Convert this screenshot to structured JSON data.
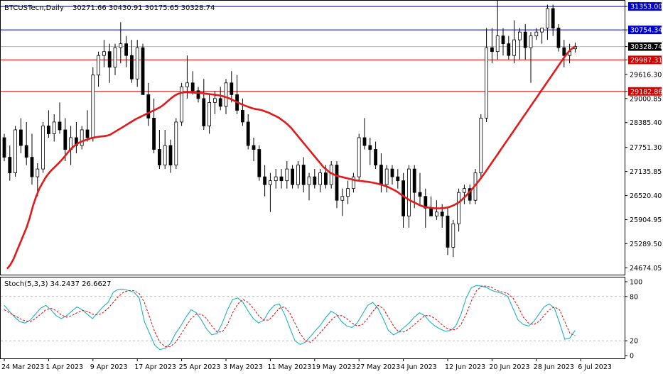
{
  "header": {
    "symbol": "BTCUSTecn,Daily",
    "ohlc": "30271.66 30430.91 30175.65 30328.74"
  },
  "colors": {
    "bull": "#ffffff",
    "bear": "#000000",
    "ma": "#e31a1c",
    "resistance": "#0000c8",
    "support": "#d40000",
    "current_tag": "#000000",
    "stoch_main": "#20b2c0",
    "stoch_signal": "#e31a1c"
  },
  "chart_data": [
    {
      "type": "candlestick",
      "title": "BTCUSTecn,Daily",
      "price_axis": {
        "min": 24500,
        "max": 31500,
        "ticks": [
          31353.0,
          30754.34,
          30328.74,
          29987.31,
          29616.3,
          29182.86,
          29000.85,
          28385.4,
          27751.3,
          27135.85,
          26520.4,
          25904.95,
          25289.5,
          24674.05
        ]
      },
      "x_labels": [
        "24 Mar 2023",
        "1 Apr 2023",
        "9 Apr 2023",
        "17 Apr 2023",
        "25 Apr 2023",
        "3 May 2023",
        "11 May 2023",
        "19 May 2023",
        "27 May 2023",
        "4 Jun 2023",
        "12 Jun 2023",
        "20 Jun 2023",
        "28 Jun 2023",
        "6 Jul 2023"
      ],
      "x_label_index": [
        0,
        8,
        16,
        24,
        32,
        40,
        48,
        56,
        64,
        72,
        80,
        88,
        96,
        104
      ],
      "horizontal_levels": [
        {
          "value": 31353.0,
          "label": "31353.00",
          "kind": "resistance"
        },
        {
          "value": 30754.34,
          "label": "30754.34",
          "kind": "resistance"
        },
        {
          "value": 29987.31,
          "label": "29987.31",
          "kind": "support"
        },
        {
          "value": 29182.86,
          "label": "29182.86",
          "kind": "support"
        }
      ],
      "current_price": 30328.74,
      "candles": [
        [
          28000,
          28100,
          27400,
          27500
        ],
        [
          27500,
          27800,
          26900,
          27100
        ],
        [
          27100,
          28300,
          27000,
          28200
        ],
        [
          28200,
          28500,
          27600,
          27800
        ],
        [
          27800,
          28400,
          27300,
          27500
        ],
        [
          27500,
          28100,
          26800,
          27000
        ],
        [
          27000,
          27350,
          26500,
          27200
        ],
        [
          27200,
          28400,
          27100,
          28300
        ],
        [
          28300,
          28700,
          28000,
          28100
        ],
        [
          28100,
          28600,
          27900,
          28400
        ],
        [
          28400,
          28900,
          28100,
          28200
        ],
        [
          28200,
          28500,
          27400,
          27700
        ],
        [
          27700,
          28300,
          27300,
          28000
        ],
        [
          28000,
          28400,
          27600,
          27800
        ],
        [
          27800,
          28300,
          27700,
          28200
        ],
        [
          28200,
          28700,
          27900,
          28000
        ],
        [
          28000,
          29800,
          27900,
          29600
        ],
        [
          29600,
          30200,
          29300,
          30100
        ],
        [
          30100,
          30500,
          29800,
          30200
        ],
        [
          30200,
          30400,
          29400,
          29800
        ],
        [
          29800,
          30400,
          29600,
          30300
        ],
        [
          30300,
          30950,
          29900,
          30400
        ],
        [
          30400,
          30600,
          29800,
          30100
        ],
        [
          30100,
          30500,
          29400,
          29500
        ],
        [
          29500,
          30500,
          29300,
          30300
        ],
        [
          30300,
          30400,
          29100,
          29100
        ],
        [
          29100,
          29400,
          28300,
          28500
        ],
        [
          28500,
          29000,
          27600,
          27700
        ],
        [
          27700,
          28200,
          27200,
          27300
        ],
        [
          27300,
          28200,
          27200,
          27800
        ],
        [
          27800,
          27950,
          27100,
          27300
        ],
        [
          27300,
          28500,
          27200,
          28400
        ],
        [
          28400,
          29400,
          28300,
          29300
        ],
        [
          29300,
          30100,
          29000,
          29400
        ],
        [
          29400,
          29700,
          29100,
          29200
        ],
        [
          29200,
          29300,
          28900,
          29000
        ],
        [
          29000,
          29500,
          28200,
          28300
        ],
        [
          28300,
          29100,
          28100,
          28900
        ],
        [
          28900,
          29200,
          28600,
          29000
        ],
        [
          29000,
          29300,
          28700,
          28800
        ],
        [
          28800,
          29500,
          28600,
          29400
        ],
        [
          29400,
          29700,
          28900,
          29100
        ],
        [
          29100,
          29600,
          28600,
          28700
        ],
        [
          28700,
          29000,
          28300,
          28400
        ],
        [
          28400,
          28600,
          27700,
          27800
        ],
        [
          27800,
          28000,
          27400,
          27700
        ],
        [
          27700,
          27800,
          26900,
          27000
        ],
        [
          27000,
          27300,
          26500,
          26800
        ],
        [
          26800,
          27100,
          26100,
          26900
        ],
        [
          26900,
          27200,
          26700,
          27000
        ],
        [
          27000,
          27200,
          26700,
          26900
        ],
        [
          26900,
          27400,
          26700,
          27200
        ],
        [
          27200,
          27300,
          26700,
          26800
        ],
        [
          26800,
          27400,
          26700,
          27300
        ],
        [
          27300,
          27500,
          26600,
          26800
        ],
        [
          26800,
          27100,
          26400,
          27000
        ],
        [
          27000,
          27200,
          26700,
          26800
        ],
        [
          26800,
          27200,
          26600,
          27100
        ],
        [
          27100,
          27300,
          26700,
          26800
        ],
        [
          26800,
          27400,
          26700,
          27300
        ],
        [
          27300,
          27400,
          26200,
          26400
        ],
        [
          26400,
          26700,
          26000,
          26500
        ],
        [
          26500,
          26900,
          26300,
          26700
        ],
        [
          26700,
          27100,
          26600,
          27000
        ],
        [
          27000,
          28100,
          26900,
          28000
        ],
        [
          28000,
          28500,
          27700,
          27800
        ],
        [
          27800,
          28000,
          27300,
          27700
        ],
        [
          27700,
          27900,
          27200,
          27300
        ],
        [
          27300,
          27600,
          26600,
          26800
        ],
        [
          26800,
          27300,
          26600,
          27200
        ],
        [
          27200,
          27300,
          26800,
          27000
        ],
        [
          27000,
          27200,
          26700,
          26900
        ],
        [
          26900,
          27100,
          25700,
          26000
        ],
        [
          26000,
          27300,
          25700,
          27200
        ],
        [
          27200,
          27300,
          26200,
          26600
        ],
        [
          26600,
          27100,
          26300,
          26500
        ],
        [
          26500,
          26700,
          25700,
          26200
        ],
        [
          26200,
          26500,
          26000,
          26000
        ],
        [
          26000,
          26400,
          25900,
          26100
        ],
        [
          26100,
          26300,
          25700,
          26000
        ],
        [
          26000,
          26200,
          25000,
          25200
        ],
        [
          25200,
          25900,
          24950,
          25800
        ],
        [
          25800,
          26700,
          25600,
          26600
        ],
        [
          26600,
          26800,
          26300,
          26700
        ],
        [
          26700,
          26800,
          26300,
          26400
        ],
        [
          26400,
          27200,
          26300,
          27100
        ],
        [
          27100,
          28600,
          27000,
          28500
        ],
        [
          28500,
          30800,
          28400,
          30300
        ],
        [
          30300,
          30800,
          29900,
          30200
        ],
        [
          30200,
          31600,
          30000,
          30600
        ],
        [
          30600,
          30800,
          30100,
          30400
        ],
        [
          30400,
          30600,
          30000,
          30100
        ],
        [
          30100,
          31000,
          29900,
          30500
        ],
        [
          30500,
          30800,
          30000,
          30700
        ],
        [
          30700,
          30900,
          30000,
          30300
        ],
        [
          30300,
          30700,
          29400,
          30600
        ],
        [
          30600,
          30800,
          30500,
          30700
        ],
        [
          30700,
          30800,
          30400,
          30800
        ],
        [
          30800,
          31400,
          30500,
          31300
        ],
        [
          31300,
          31400,
          30600,
          30800
        ],
        [
          30800,
          30900,
          30200,
          30300
        ],
        [
          30300,
          30500,
          29800,
          30100
        ],
        [
          30100,
          30400,
          29900,
          30200
        ],
        [
          30271.66,
          30430.91,
          30175.65,
          30328.74
        ]
      ],
      "ma": [
        24650,
        24750,
        24900,
        25100,
        25300,
        25500,
        25700,
        25950,
        26250,
        26500,
        26700,
        26850,
        26990,
        27100,
        27190,
        27270,
        27350,
        27440,
        27540,
        27640,
        27730,
        27800,
        27860,
        27900,
        27930,
        27960,
        27985,
        28005,
        28020,
        28030,
        28040,
        28050,
        28080,
        28130,
        28180,
        28230,
        28280,
        28330,
        28380,
        28430,
        28480,
        28520,
        28560,
        28600,
        28640,
        28680,
        28720,
        28760,
        28810,
        28880,
        28950,
        29020,
        29080,
        29120,
        29150,
        29160,
        29160,
        29155,
        29150,
        29148,
        29145,
        29130,
        29120,
        29110,
        29100,
        29090,
        29075,
        29055,
        29030,
        29000,
        28960,
        28920,
        28880,
        28840,
        28810,
        28780,
        28750,
        28730,
        28720,
        28700,
        28670,
        28640,
        28600,
        28560,
        28520,
        28460,
        28400,
        28330,
        28250,
        28150,
        28050,
        27950,
        27850,
        27750,
        27650,
        27550,
        27450,
        27350,
        27250,
        27180,
        27110,
        27070,
        27030,
        27010,
        26990,
        26970,
        26950,
        26930,
        26910,
        26900,
        26890,
        26880,
        26870,
        26855,
        26840,
        26820,
        26800,
        26770,
        26740,
        26700,
        26660,
        26610,
        26550,
        26490,
        26440,
        26390,
        26350,
        26310,
        26270,
        26240,
        26220,
        26210,
        26200,
        26195,
        26195,
        26200,
        26210,
        26230,
        26260,
        26300,
        26350,
        26420,
        26500,
        26590,
        26680,
        26780,
        26880,
        26990,
        27100,
        27220,
        27340,
        27460,
        27580,
        27700,
        27820,
        27940,
        28060,
        28180,
        28300,
        28420,
        28540,
        28660,
        28780,
        28900,
        29020,
        29140,
        29260,
        29380,
        29500,
        29620,
        29740,
        29860,
        29980,
        30100,
        30200,
        30280,
        30330
      ]
    },
    {
      "type": "line",
      "title": "Stoch(5,3,3) 34.2437 26.6627",
      "y_axis": {
        "min": 0,
        "max": 100,
        "ticks": [
          100,
          80,
          20,
          0
        ]
      },
      "levels": [
        80,
        20
      ],
      "series": [
        {
          "name": "%K",
          "values": [
            68,
            60,
            52,
            46,
            44,
            48,
            56,
            64,
            68,
            62,
            54,
            50,
            54,
            60,
            66,
            62,
            56,
            50,
            58,
            66,
            72,
            86,
            90,
            90,
            88,
            86,
            78,
            46,
            30,
            14,
            8,
            10,
            16,
            30,
            40,
            52,
            62,
            58,
            48,
            36,
            28,
            30,
            44,
            62,
            76,
            78,
            72,
            60,
            50,
            44,
            48,
            60,
            68,
            70,
            56,
            38,
            20,
            15,
            18,
            26,
            34,
            42,
            52,
            60,
            56,
            46,
            40,
            38,
            44,
            56,
            68,
            72,
            64,
            50,
            34,
            28,
            32,
            38,
            44,
            52,
            58,
            54,
            46,
            40,
            36,
            33,
            34,
            40,
            56,
            78,
            92,
            95,
            94,
            92,
            88,
            86,
            84,
            80,
            64,
            48,
            42,
            40,
            46,
            56,
            66,
            70,
            64,
            44,
            22,
            24,
            34
          ]
        },
        {
          "name": "%D",
          "values": [
            62,
            58,
            54,
            50,
            47,
            46,
            50,
            56,
            62,
            64,
            61,
            55,
            52,
            54,
            58,
            61,
            60,
            56,
            55,
            58,
            64,
            72,
            80,
            86,
            88,
            88,
            84,
            72,
            52,
            32,
            18,
            12,
            12,
            18,
            28,
            40,
            50,
            56,
            56,
            50,
            40,
            32,
            32,
            42,
            58,
            70,
            76,
            72,
            64,
            54,
            48,
            48,
            56,
            64,
            66,
            58,
            44,
            30,
            20,
            18,
            24,
            32,
            40,
            48,
            54,
            54,
            50,
            44,
            40,
            42,
            50,
            60,
            68,
            64,
            52,
            40,
            32,
            32,
            36,
            42,
            48,
            54,
            54,
            50,
            44,
            38,
            35,
            35,
            42,
            56,
            74,
            88,
            94,
            94,
            92,
            88,
            86,
            84,
            78,
            66,
            52,
            44,
            42,
            46,
            54,
            62,
            66,
            62,
            46,
            30,
            27
          ]
        }
      ]
    }
  ]
}
